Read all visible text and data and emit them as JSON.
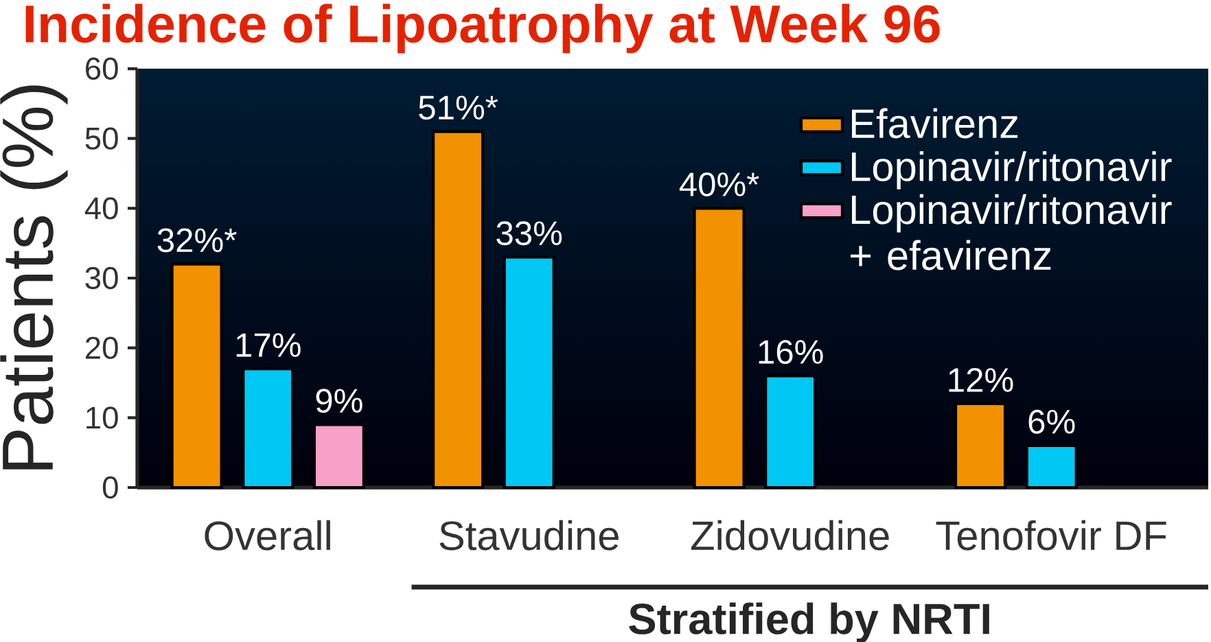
{
  "chart_data": {
    "type": "bar",
    "title": "Incidence of Lipoatrophy at Week 96",
    "categories": [
      "Overall",
      "Stavudine",
      "Zidovudine",
      "Tenofovir DF"
    ],
    "xlabel": "Stratified by NRTI",
    "ylabel": "Patients (%)",
    "series": [
      {
        "name": "Efavirenz",
        "color": "#f39200",
        "values": [
          32,
          51,
          40,
          12
        ],
        "value_labels": [
          "32%*",
          "51%*",
          "40%*",
          "12%"
        ]
      },
      {
        "name": "Lopinavir/ritonavir",
        "color": "#00c8f5",
        "values": [
          17,
          33,
          16,
          6
        ],
        "value_labels": [
          "17%",
          "33%",
          "16%",
          "6%"
        ]
      },
      {
        "name": "Lopinavir/ritonavir + efavirenz",
        "color": "#f7a0c8",
        "values": [
          9,
          null,
          null,
          null
        ],
        "value_labels": [
          "9%",
          null,
          null,
          null
        ]
      }
    ],
    "ylim": [
      0,
      60
    ],
    "yticks": [
      0,
      10,
      20,
      30,
      40,
      50,
      60
    ],
    "legend": "top right"
  }
}
